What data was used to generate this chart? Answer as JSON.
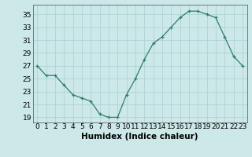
{
  "x": [
    0,
    1,
    2,
    3,
    4,
    5,
    6,
    7,
    8,
    9,
    10,
    11,
    12,
    13,
    14,
    15,
    16,
    17,
    18,
    19,
    20,
    21,
    22,
    23
  ],
  "y": [
    27,
    25.5,
    25.5,
    24,
    22.5,
    22,
    21.5,
    19.5,
    19,
    19,
    22.5,
    25,
    28,
    30.5,
    31.5,
    33,
    34.5,
    35.5,
    35.5,
    35,
    34.5,
    31.5,
    28.5,
    27
  ],
  "line_color": "#2e7d6b",
  "marker": "+",
  "bg_color": "#cce8e8",
  "grid_color": "#aacfcf",
  "xlabel": "Humidex (Indice chaleur)",
  "ylabel_ticks": [
    19,
    21,
    23,
    25,
    27,
    29,
    31,
    33,
    35
  ],
  "ylim": [
    18.2,
    36.5
  ],
  "xlim": [
    -0.5,
    23.5
  ],
  "axis_label_fontsize": 7.5,
  "tick_fontsize": 6.5
}
